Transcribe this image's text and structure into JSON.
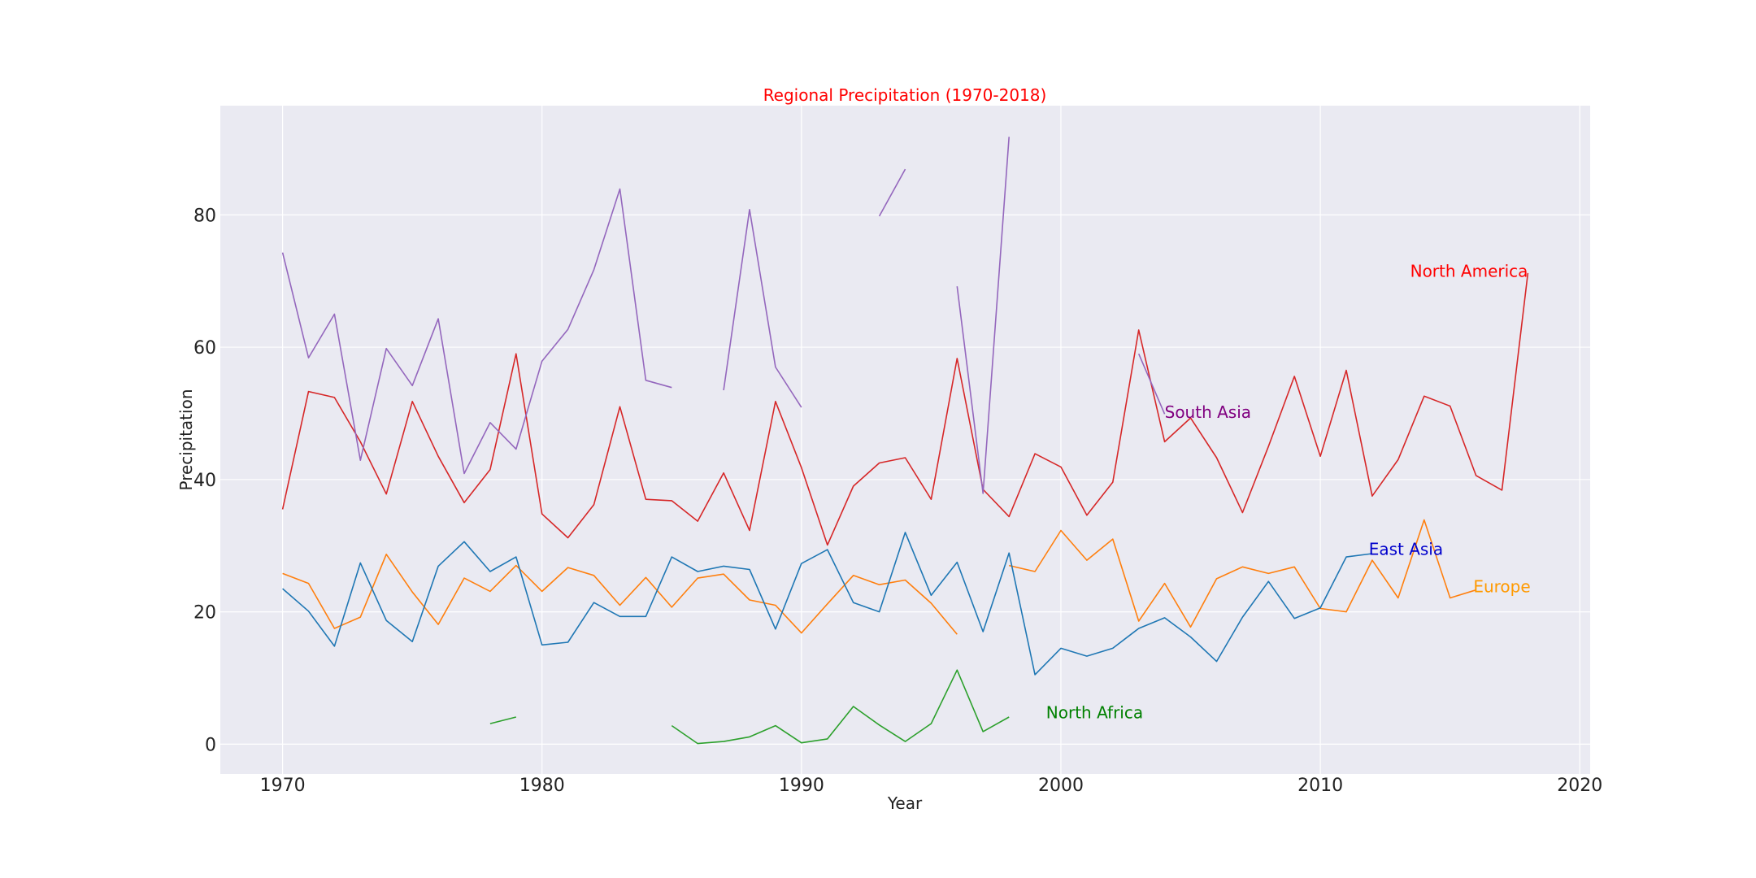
{
  "chart_data": {
    "type": "line",
    "title": "Regional Precipitation (1970-2018)",
    "title_color": "#ff0000",
    "xlabel": "Year",
    "ylabel": "Precipitation",
    "xlim": [
      1967.6,
      2020.4
    ],
    "ylim": [
      -4.5,
      96.5
    ],
    "xticks": [
      1970,
      1980,
      1990,
      2000,
      2010,
      2020
    ],
    "yticks": [
      0,
      20,
      40,
      60,
      80
    ],
    "grid": true,
    "background": "#eaeaf2",
    "x": [
      1970,
      1971,
      1972,
      1973,
      1974,
      1975,
      1976,
      1977,
      1978,
      1979,
      1980,
      1981,
      1982,
      1983,
      1984,
      1985,
      1986,
      1987,
      1988,
      1989,
      1990,
      1991,
      1992,
      1993,
      1994,
      1995,
      1996,
      1997,
      1998,
      1999,
      2000,
      2001,
      2002,
      2003,
      2004,
      2005,
      2006,
      2007,
      2008,
      2009,
      2010,
      2011,
      2012,
      2013,
      2014,
      2015,
      2016,
      2017,
      2018
    ],
    "series": [
      {
        "name": "North America",
        "color": "#d62728",
        "label_color": "#ff0000",
        "label_x": 2018,
        "label_y": 71.5,
        "label_anchor": "end",
        "values": [
          35.5,
          53.3,
          52.4,
          45.7,
          37.8,
          51.8,
          43.5,
          36.5,
          41.5,
          59.0,
          34.8,
          31.2,
          36.2,
          51.0,
          37.0,
          36.8,
          33.7,
          41.0,
          32.3,
          51.8,
          41.8,
          30.1,
          39.0,
          42.5,
          43.3,
          37.0,
          58.3,
          38.5,
          34.4,
          43.9,
          41.9,
          34.6,
          39.6,
          62.6,
          45.7,
          49.3,
          43.3,
          35.0,
          45.0,
          55.6,
          43.5,
          56.5,
          37.5,
          43.0,
          52.6,
          51.1,
          40.6,
          38.4,
          71.2
        ]
      },
      {
        "name": "Europe",
        "color": "#ff7f0e",
        "label_color": "#ff9900",
        "label_x": 2017,
        "label_y": 23.8,
        "label_anchor": "middle",
        "values": [
          25.8,
          24.3,
          17.5,
          19.2,
          28.7,
          23.0,
          18.1,
          25.1,
          23.1,
          27.0,
          23.1,
          26.7,
          25.5,
          21.0,
          25.2,
          20.7,
          25.1,
          25.7,
          21.8,
          21.0,
          16.8,
          21.2,
          25.5,
          24.1,
          24.8,
          21.3,
          16.6,
          null,
          27.0,
          26.1,
          32.3,
          27.8,
          31.0,
          18.6,
          24.3,
          17.7,
          25.0,
          26.8,
          25.8,
          26.8,
          20.5,
          20.0,
          27.8,
          22.1,
          33.9,
          22.1,
          23.3,
          null,
          null
        ]
      },
      {
        "name": "East Asia",
        "color": "#1f77b4",
        "label_color": "#0000cc",
        "label_x": 2013.3,
        "label_y": 29.5,
        "label_anchor": "middle",
        "values": [
          23.5,
          20.1,
          14.8,
          27.4,
          18.7,
          15.5,
          26.9,
          30.6,
          26.1,
          28.3,
          15.0,
          15.4,
          21.4,
          19.3,
          19.3,
          28.3,
          26.1,
          26.9,
          26.4,
          17.4,
          27.3,
          29.4,
          21.4,
          20.0,
          32.0,
          22.5,
          27.5,
          17.0,
          28.9,
          10.5,
          14.5,
          13.3,
          14.5,
          17.5,
          19.1,
          16.2,
          12.5,
          19.2,
          24.6,
          19.0,
          20.6,
          28.3,
          28.8,
          null,
          null,
          null,
          null,
          null,
          null
        ]
      },
      {
        "name": "North Africa",
        "color": "#2ca02c",
        "label_color": "#008000",
        "label_x": 2001.3,
        "label_y": 4.8,
        "label_anchor": "middle",
        "values": [
          null,
          null,
          null,
          null,
          null,
          null,
          null,
          null,
          3.1,
          4.1,
          null,
          null,
          null,
          null,
          null,
          2.8,
          0.1,
          0.4,
          1.1,
          2.8,
          0.2,
          0.8,
          5.7,
          2.9,
          0.4,
          3.1,
          11.2,
          1.9,
          4.1,
          null,
          null,
          null,
          null,
          null,
          null,
          null,
          null,
          null,
          null,
          null,
          null,
          null,
          null,
          null,
          null,
          null,
          null,
          null,
          null
        ]
      },
      {
        "name": "South Asia",
        "color": "#9467bd",
        "label_color": "#800080",
        "label_x": 2004,
        "label_y": 50.2,
        "label_anchor": "start",
        "values": [
          74.3,
          58.4,
          65.0,
          42.9,
          59.8,
          54.2,
          64.3,
          40.9,
          48.6,
          44.6,
          57.9,
          62.7,
          71.7,
          83.9,
          55.0,
          53.9,
          null,
          53.5,
          80.8,
          57.0,
          50.9,
          null,
          null,
          79.8,
          86.9,
          null,
          69.2,
          37.9,
          91.8,
          null,
          null,
          null,
          null,
          59.0,
          49.9,
          null,
          null,
          null,
          null,
          null,
          null,
          null,
          null,
          null,
          null,
          null,
          null,
          null,
          null
        ]
      }
    ]
  }
}
